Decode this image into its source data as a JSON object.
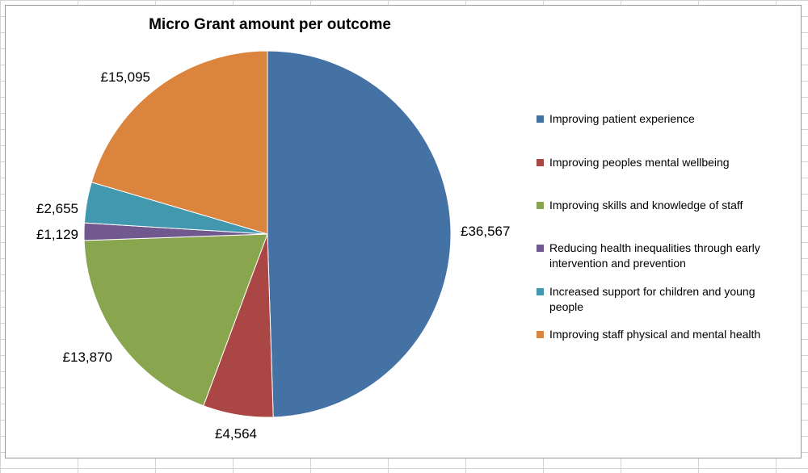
{
  "colors": {
    "grid": "#d4d4d4",
    "frame": "#9a9a9a"
  },
  "chart_data": {
    "type": "pie",
    "title": "Micro Grant amount per outcome",
    "slices": [
      {
        "label": "Improving patient experience",
        "value": 36567,
        "value_label": "£36,567",
        "color": "#4472a4"
      },
      {
        "label": "Improving peoples mental wellbeing",
        "value": 4564,
        "value_label": "£4,564",
        "color": "#aa4643"
      },
      {
        "label": "Improving skills and knowledge of staff",
        "value": 13870,
        "value_label": "£13,870",
        "color": "#89a54e"
      },
      {
        "label": "Reducing health inequalities through early intervention and prevention",
        "value": 1129,
        "value_label": "£1,129",
        "color": "#71588f"
      },
      {
        "label": "Increased support for children and young people",
        "value": 2655,
        "value_label": "£2,655",
        "color": "#4198af"
      },
      {
        "label": "Improving staff physical and mental health",
        "value": 15095,
        "value_label": "£15,095",
        "color": "#db843d"
      }
    ],
    "legend_position": "right",
    "start_angle": "12 o'clock",
    "direction": "clockwise"
  },
  "legend": {
    "items": [
      {
        "label": "Improving patient experience"
      },
      {
        "label": "Improving peoples mental wellbeing"
      },
      {
        "label": "Improving skills and knowledge of staff"
      },
      {
        "label": "Reducing health inequalities through early intervention and prevention"
      },
      {
        "label": "Increased support for children and young people"
      },
      {
        "label": "Improving staff physical and mental health"
      }
    ]
  }
}
